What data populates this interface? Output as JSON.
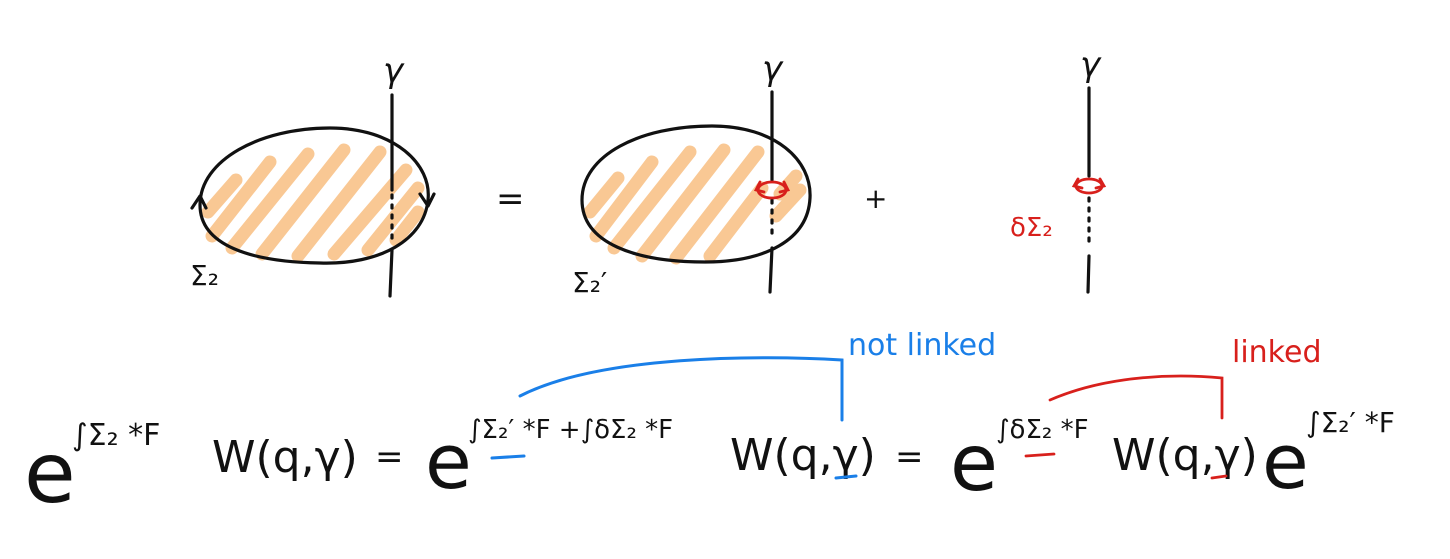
{
  "panels": {
    "left": {
      "curve_label": "γ",
      "surface_label": "Σ₂"
    },
    "equals": "=",
    "middle": {
      "curve_label": "γ",
      "surface_label": "Σ₂′"
    },
    "plus": "+",
    "right": {
      "curve_label": "γ",
      "surface_label": "δΣ₂"
    }
  },
  "annotations": {
    "not_linked": "not linked",
    "linked": "linked"
  },
  "equation": {
    "t1_base": "e",
    "t1_exp": "∫Σ₂ *F",
    "t1_wilson": "W(q,γ)",
    "eq1": "=",
    "t2_base": "e",
    "t2_exp": "∫Σ₂′ *F +∫δΣ₂ *F",
    "t2_wilson": "W(q,γ)",
    "eq2": "=",
    "t3_base": "e",
    "t3_exp": "∫δΣ₂ *F",
    "t3_wilson": "W(q,γ)",
    "t4_base": "e",
    "t4_exp": "∫Σ₂′ *F"
  },
  "colors": {
    "hatch": "#f9c894",
    "ink": "#111111",
    "red": "#d8201c",
    "blue": "#1a7fe8"
  }
}
